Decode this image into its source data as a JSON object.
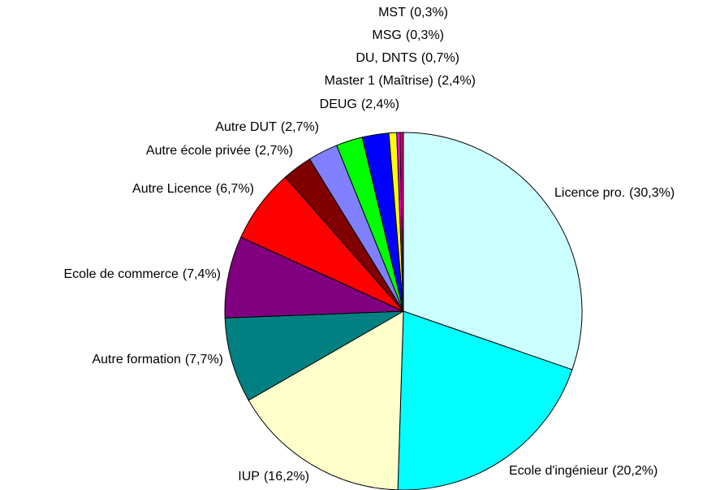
{
  "chart_data": {
    "type": "pie",
    "categories": [
      "Licence pro.",
      "Ecole d'ingénieur",
      "IUP",
      "Autre formation",
      "Ecole de commerce",
      "Autre Licence",
      "Autre école privée",
      "Autre DUT",
      "DEUG",
      "Master 1 (Maîtrise)",
      "DU, DNTS",
      "MSG",
      "MST"
    ],
    "values": [
      30.3,
      20.2,
      16.2,
      7.7,
      7.4,
      6.7,
      2.7,
      2.7,
      2.4,
      2.4,
      0.7,
      0.3,
      0.3
    ],
    "value_labels": [
      "(30,3%)",
      "(20,2%)",
      "(16,2%)",
      "(7,7%)",
      "(7,4%)",
      "(6,7%)",
      "(2,7%)",
      "(2,7%)",
      "(2,4%)",
      "(2,4%)",
      "(0,7%)",
      "(0,3%)",
      "(0,3%)"
    ],
    "colors": [
      "#ccffff",
      "#00ffff",
      "#ffffcc",
      "#008080",
      "#800080",
      "#ff0000",
      "#800000",
      "#8080ff",
      "#00ff00",
      "#0000ff",
      "#ffff00",
      "#ff00ff",
      "#cc0066"
    ]
  }
}
